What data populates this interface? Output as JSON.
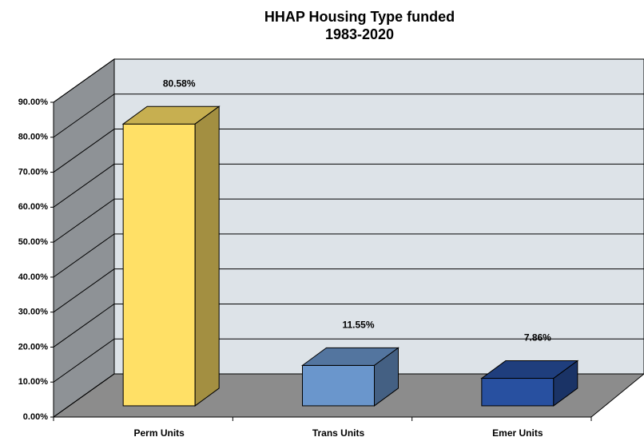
{
  "chart_data": {
    "type": "bar3d",
    "title": [
      "HHAP Housing Type funded",
      "1983-2020"
    ],
    "categories": [
      "Perm Units",
      "Trans Units",
      "Emer Units"
    ],
    "values": [
      80.58,
      11.55,
      7.86
    ],
    "value_labels": [
      "80.58%",
      "11.55%",
      "7.86%"
    ],
    "colors": [
      "#ffe066",
      "#6a96cc",
      "#2850a0"
    ],
    "ylim": [
      0,
      90
    ],
    "yticks": [
      {
        "value": 0,
        "label": "0.00%"
      },
      {
        "value": 10,
        "label": "10.00%"
      },
      {
        "value": 20,
        "label": "20.00%"
      },
      {
        "value": 30,
        "label": "30.00%"
      },
      {
        "value": 40,
        "label": "40.00%"
      },
      {
        "value": 50,
        "label": "50.00%"
      },
      {
        "value": 60,
        "label": "60.00%"
      },
      {
        "value": 70,
        "label": "70.00%"
      },
      {
        "value": 80,
        "label": "80.00%"
      },
      {
        "value": 90,
        "label": "90.00%"
      }
    ],
    "grid": true
  }
}
